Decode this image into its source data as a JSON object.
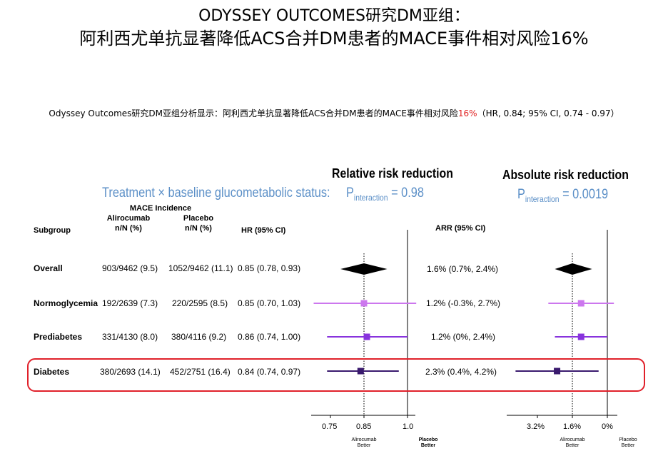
{
  "titles": {
    "line1": "ODYSSEY OUTCOMES研究DM亚组：",
    "line2": "阿利西尤单抗显著降低ACS合并DM患者的MACE事件相对风险16%"
  },
  "summary": {
    "prefix": "Odyssey Outcomes研究DM亚组分析显示：阿利西尤单抗显著降低ACS合并DM患者的MACE事件相对风险",
    "highlight": "16%",
    "suffix": "（HR, 0.84; 95% CI, 0.74 - 0.97）"
  },
  "panels": {
    "relative_title": "Relative risk reduction",
    "absolute_title": "Absolute risk reduction",
    "treatment_status": "Treatment × baseline glucometabolic status:",
    "p_rel_label": "P",
    "p_rel_sub": "interaction",
    "p_rel_value": " = 0.98",
    "p_abs_label": "P",
    "p_abs_sub": "interaction",
    "p_abs_value": " = 0.0019"
  },
  "table": {
    "mace_incidence": "MACE Incidence",
    "col_subgroup": "Subgroup",
    "col_alirocumab": "Alirocumab",
    "col_alirocumab_unit": "n/N (%)",
    "col_placebo": "Placebo",
    "col_placebo_unit": "n/N (%)",
    "col_hr": "HR (95% CI)",
    "col_arr": "ARR (95% CI)",
    "rows": [
      {
        "label": "Overall",
        "alirocumab": "903/9462 (9.5)",
        "placebo": "1052/9462 (11.1)",
        "hr_text": "0.85 (0.78, 0.93)",
        "arr_text": "1.6% (0.7%, 2.4%)"
      },
      {
        "label": "Normoglycemia",
        "alirocumab": "192/2639 (7.3)",
        "placebo": "220/2595 (8.5)",
        "hr_text": "0.85 (0.70, 1.03)",
        "arr_text": "1.2% (-0.3%, 2.7%)"
      },
      {
        "label": "Prediabetes",
        "alirocumab": "331/4130 (8.0)",
        "placebo": "380/4116 (9.2)",
        "hr_text": "0.86 (0.74, 1.00)",
        "arr_text": "1.2% (0%, 2.4%)"
      },
      {
        "label": "Diabetes",
        "alirocumab": "380/2693 (14.1)",
        "placebo": "452/2751 (16.4)",
        "hr_text": "0.84 (0.74, 0.97)",
        "arr_text": "2.3% (0.4%, 4.2%)"
      }
    ]
  },
  "axes": {
    "rel_ticks": [
      "0.75",
      "0.85",
      "1.0"
    ],
    "abs_ticks": [
      "3.2%",
      "1.6%",
      "0%"
    ],
    "rel_left_better": "Alirocumab Better",
    "rel_right_better": "Placebo Better",
    "abs_left_better": "Alirocumab Better",
    "abs_right_better": "Placebo Better"
  },
  "colors": {
    "overall": "#000000",
    "normoglycemia": "#cc77ee",
    "prediabetes": "#8833dd",
    "diabetes": "#3a1a6e",
    "highlight_box": "#e0202a",
    "blue_text": "#5b8fc7"
  },
  "chart_data": [
    {
      "type": "forest",
      "xlabel": "",
      "ylabel": "",
      "reference_line": 1.0,
      "overall_line": 0.85,
      "xlim": [
        0.7,
        1.05
      ],
      "ticks": [
        0.75,
        0.85,
        1.0
      ],
      "series": [
        {
          "category": "Overall",
          "estimate": 0.85,
          "lower": 0.78,
          "upper": 0.93,
          "shape": "diamond"
        },
        {
          "category": "Normoglycemia",
          "estimate": 0.85,
          "lower": 0.7,
          "upper": 1.03
        },
        {
          "category": "Prediabetes",
          "estimate": 0.86,
          "lower": 0.74,
          "upper": 1.0
        },
        {
          "category": "Diabetes",
          "estimate": 0.84,
          "lower": 0.74,
          "upper": 0.97
        }
      ]
    },
    {
      "type": "forest",
      "xlabel": "",
      "ylabel": "",
      "reference_line": 0,
      "overall_line": 1.6,
      "xlim": [
        4.2,
        -0.3
      ],
      "ticks": [
        3.2,
        1.6,
        0
      ],
      "series": [
        {
          "category": "Overall",
          "estimate": 1.6,
          "lower": 0.7,
          "upper": 2.4,
          "shape": "diamond"
        },
        {
          "category": "Normoglycemia",
          "estimate": 1.2,
          "lower": -0.3,
          "upper": 2.7
        },
        {
          "category": "Prediabetes",
          "estimate": 1.2,
          "lower": 0.0,
          "upper": 2.4
        },
        {
          "category": "Diabetes",
          "estimate": 2.3,
          "lower": 0.4,
          "upper": 4.2
        }
      ]
    }
  ]
}
